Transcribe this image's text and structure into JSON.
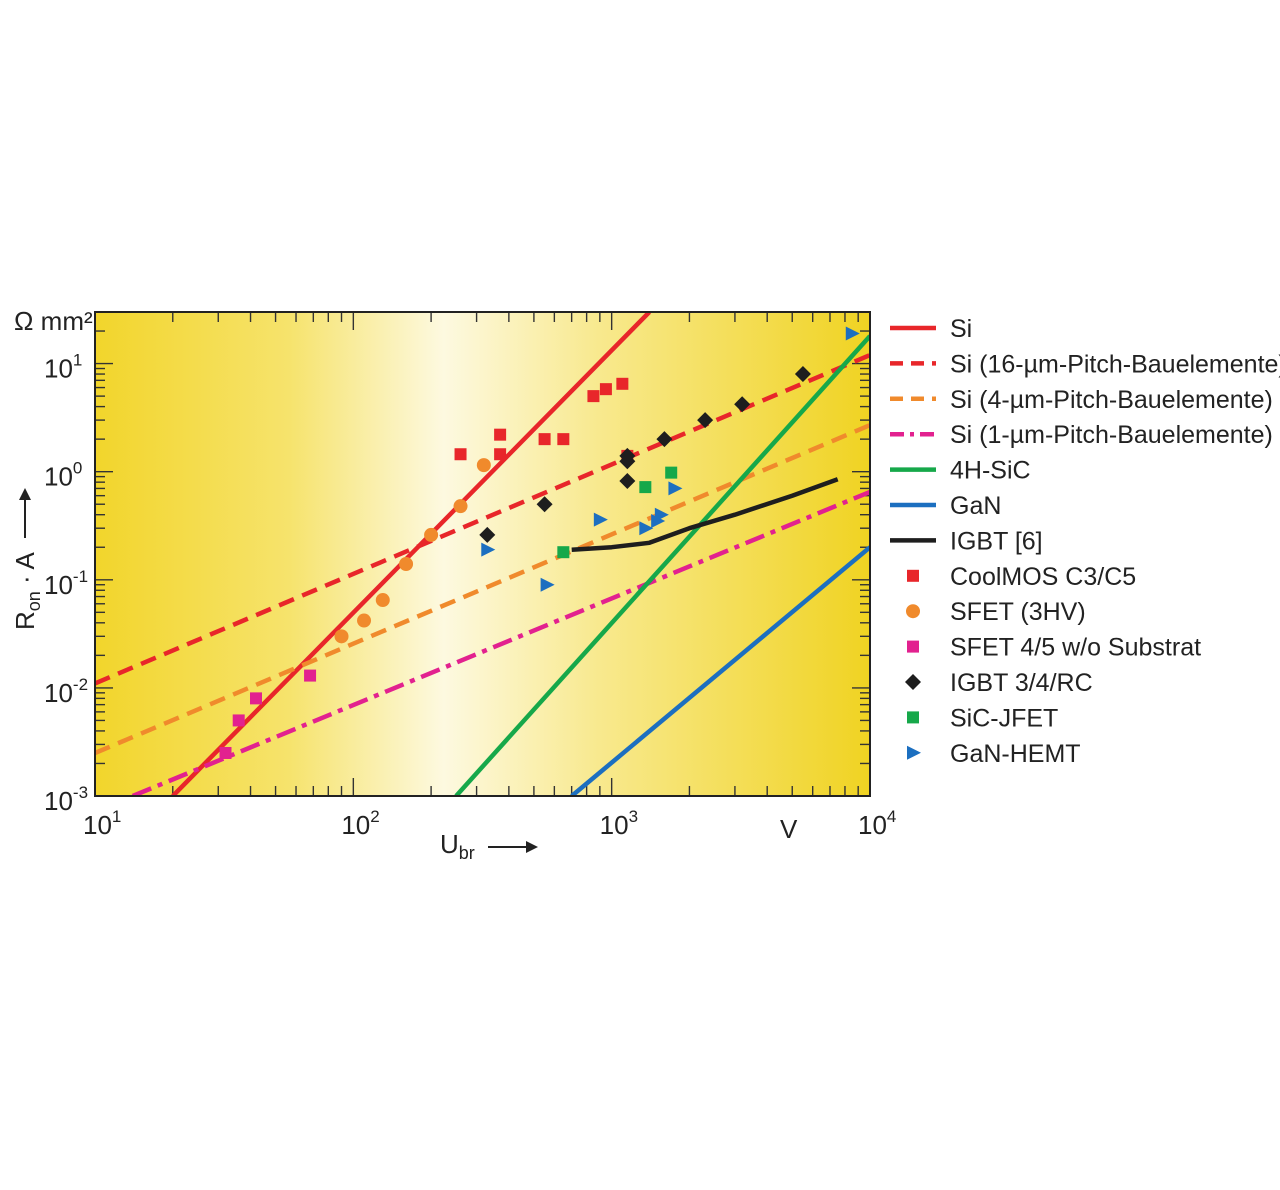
{
  "chart_data": {
    "type": "scatter",
    "x_scale": "log",
    "y_scale": "log",
    "xlim": [
      10,
      10000
    ],
    "ylim": [
      0.001,
      30
    ],
    "x_unit": "V",
    "y_unit": "Ω mm²",
    "xlabel": "U",
    "xlabel_sub": "br",
    "ylabel": "R",
    "ylabel_sub": "on",
    "ylabel_rest": " · A",
    "x_ticks": [
      {
        "value": 10,
        "base": "10",
        "exp": "1"
      },
      {
        "value": 100,
        "base": "10",
        "exp": "2"
      },
      {
        "value": 1000,
        "base": "10",
        "exp": "3"
      },
      {
        "value": 10000,
        "base": "10",
        "exp": "4"
      }
    ],
    "y_ticks": [
      {
        "value": 0.001,
        "base": "10",
        "exp": "-3"
      },
      {
        "value": 0.01,
        "base": "10",
        "exp": "-2"
      },
      {
        "value": 0.1,
        "base": "10",
        "exp": "-1"
      },
      {
        "value": 1,
        "base": "10",
        "exp": "0"
      },
      {
        "value": 10,
        "base": "10",
        "exp": "1"
      }
    ],
    "legend_position": "right",
    "background": "yellow gradient",
    "lines": [
      {
        "name": "Si",
        "color": "#e8262a",
        "dash": "solid",
        "points": [
          [
            20,
            0.001
          ],
          [
            1400,
            30
          ]
        ]
      },
      {
        "name": "Si (16-µm-Pitch-Bauelemente)",
        "color": "#e8262a",
        "dash": "dashed",
        "points": [
          [
            10,
            0.011
          ],
          [
            10000,
            12
          ]
        ]
      },
      {
        "name": "Si (4-µm-Pitch-Bauelemente)",
        "color": "#f08a2c",
        "dash": "dashed",
        "points": [
          [
            10,
            0.0025
          ],
          [
            10000,
            2.7
          ]
        ]
      },
      {
        "name": "Si (1-µm-Pitch-Bauelemente)",
        "color": "#e2218f",
        "dash": "dashdot",
        "points": [
          [
            14,
            0.001
          ],
          [
            10000,
            0.65
          ]
        ]
      },
      {
        "name": "4H-SiC",
        "color": "#16a84a",
        "dash": "solid",
        "points": [
          [
            250,
            0.001
          ],
          [
            10000,
            18
          ]
        ]
      },
      {
        "name": "GaN",
        "color": "#1c6fc0",
        "dash": "solid",
        "points": [
          [
            700,
            0.001
          ],
          [
            10000,
            0.2
          ]
        ]
      },
      {
        "name": "IGBT [6]",
        "color": "#1e1e1e",
        "dash": "solid",
        "points": [
          [
            700,
            0.19
          ],
          [
            1000,
            0.2
          ],
          [
            1400,
            0.22
          ],
          [
            2000,
            0.3
          ],
          [
            3000,
            0.4
          ],
          [
            5000,
            0.6
          ],
          [
            7500,
            0.85
          ]
        ]
      }
    ],
    "scatter": [
      {
        "name": "CoolMOS C3/C5",
        "color": "#e8262a",
        "marker": "square",
        "points": [
          [
            260,
            1.45
          ],
          [
            370,
            1.45
          ],
          [
            370,
            2.2
          ],
          [
            550,
            2.0
          ],
          [
            650,
            2.0
          ],
          [
            850,
            5.0
          ],
          [
            950,
            5.8
          ],
          [
            1100,
            6.5
          ],
          [
            1150,
            1.4
          ]
        ]
      },
      {
        "name": "SFET (3HV)",
        "color": "#f08a2c",
        "marker": "circle",
        "points": [
          [
            90,
            0.03
          ],
          [
            110,
            0.042
          ],
          [
            130,
            0.065
          ],
          [
            160,
            0.14
          ],
          [
            200,
            0.26
          ],
          [
            260,
            0.48
          ],
          [
            320,
            1.15
          ]
        ]
      },
      {
        "name": "SFET 4/5 w/o Substrat",
        "color": "#e2218f",
        "marker": "square",
        "points": [
          [
            32,
            0.0025
          ],
          [
            36,
            0.005
          ],
          [
            42,
            0.008
          ],
          [
            68,
            0.013
          ]
        ]
      },
      {
        "name": "IGBT 3/4/RC",
        "color": "#1e1e1e",
        "marker": "diamond",
        "points": [
          [
            330,
            0.26
          ],
          [
            550,
            0.5
          ],
          [
            1150,
            0.82
          ],
          [
            1150,
            1.25
          ],
          [
            1150,
            1.4
          ],
          [
            1600,
            2.0
          ],
          [
            2300,
            3.0
          ],
          [
            3200,
            4.2
          ],
          [
            5500,
            8.0
          ]
        ]
      },
      {
        "name": "SiC-JFET",
        "color": "#16a84a",
        "marker": "square",
        "points": [
          [
            650,
            0.18
          ],
          [
            1350,
            0.72
          ],
          [
            1700,
            0.98
          ]
        ]
      },
      {
        "name": "GaN-HEMT",
        "color": "#1c6fc0",
        "marker": "triangle",
        "points": [
          [
            330,
            0.19
          ],
          [
            560,
            0.09
          ],
          [
            900,
            0.36
          ],
          [
            1350,
            0.3
          ],
          [
            1500,
            0.35
          ],
          [
            1550,
            0.4
          ],
          [
            1750,
            0.7
          ],
          [
            8500,
            19
          ]
        ]
      }
    ],
    "legend": [
      {
        "label": "Si",
        "color": "#e8262a",
        "kind": "line",
        "dash": "solid"
      },
      {
        "label": "Si (16-µm-Pitch-Bauelemente)",
        "color": "#e8262a",
        "kind": "line",
        "dash": "dashed"
      },
      {
        "label": "Si (4-µm-Pitch-Bauelemente)",
        "color": "#f08a2c",
        "kind": "line",
        "dash": "dashed"
      },
      {
        "label": "Si (1-µm-Pitch-Bauelemente)",
        "color": "#e2218f",
        "kind": "line",
        "dash": "dashdot"
      },
      {
        "label": "4H-SiC",
        "color": "#16a84a",
        "kind": "line",
        "dash": "solid"
      },
      {
        "label": "GaN",
        "color": "#1c6fc0",
        "kind": "line",
        "dash": "solid"
      },
      {
        "label": "IGBT [6]",
        "color": "#1e1e1e",
        "kind": "line",
        "dash": "solid"
      },
      {
        "label": "CoolMOS C3/C5",
        "color": "#e8262a",
        "kind": "square"
      },
      {
        "label": "SFET (3HV)",
        "color": "#f08a2c",
        "kind": "circle"
      },
      {
        "label": "SFET 4/5 w/o Substrat",
        "color": "#e2218f",
        "kind": "square"
      },
      {
        "label": "IGBT 3/4/RC",
        "color": "#1e1e1e",
        "kind": "diamond"
      },
      {
        "label": "SiC-JFET",
        "color": "#16a84a",
        "kind": "square"
      },
      {
        "label": "GaN-HEMT",
        "color": "#1c6fc0",
        "kind": "triangle"
      }
    ]
  }
}
